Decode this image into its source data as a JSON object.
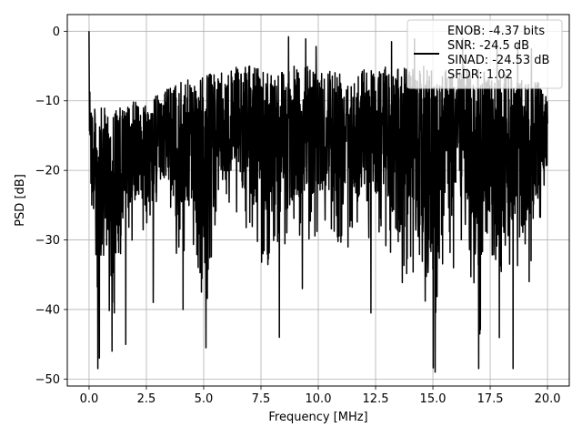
{
  "chart_data": {
    "type": "line",
    "xlabel": "Frequency [MHz]",
    "ylabel": "PSD [dB]",
    "xlim": [
      -0.95,
      20.95
    ],
    "ylim": [
      -51,
      2.4
    ],
    "xticks": [
      0,
      2.5,
      5,
      7.5,
      10,
      12.5,
      15,
      17.5,
      20
    ],
    "xtick_labels": [
      "0.0",
      "2.5",
      "5.0",
      "7.5",
      "10.0",
      "12.5",
      "15.0",
      "17.5",
      "20.0"
    ],
    "yticks": [
      0,
      -10,
      -20,
      -30,
      -40,
      -50
    ],
    "ytick_labels": [
      "0",
      "−10",
      "−20",
      "−30",
      "−40",
      "−50"
    ],
    "grid": true,
    "legend_position": "top-right",
    "legend_lines": [
      "ENOB: -4.37 bits",
      "SNR: -24.5 dB",
      "SINAD: -24.53 dB",
      "SFDR: 1.02"
    ],
    "series": [
      {
        "color": "#000000",
        "description": "dense noise spectrum, approximate envelope",
        "x": [
          0,
          0.05,
          0.1,
          0.2,
          0.3,
          0.4,
          0.5,
          0.7,
          1.0,
          1.5,
          2.0,
          2.5,
          3.0,
          3.5,
          4.0,
          4.5,
          5.0,
          5.5,
          6.0,
          6.5,
          7.0,
          7.5,
          8.0,
          8.5,
          9.0,
          9.5,
          10.0,
          10.5,
          11.0,
          11.5,
          12.0,
          12.5,
          13.0,
          13.5,
          14.0,
          14.5,
          15.0,
          15.5,
          16.0,
          16.5,
          17.0,
          17.5,
          18.0,
          18.5,
          19.0,
          19.5,
          20.0
        ],
        "y_upper": [
          0,
          -6,
          -10,
          -11,
          -11,
          -11,
          -11,
          -11,
          -11,
          -11,
          -10,
          -10,
          -9,
          -8,
          -7,
          -7,
          -6,
          -6,
          -6,
          -5,
          -5,
          -5,
          -5,
          -5,
          -5,
          -5,
          -5,
          -5,
          -5,
          -6,
          -5,
          -5,
          -5,
          -5,
          -5,
          -5,
          -5,
          -5,
          -5,
          -5,
          -5,
          -6,
          -6,
          -6,
          -7,
          -7,
          -9
        ],
        "y_lower": [
          -18,
          -20,
          -25,
          -33,
          -42,
          -48,
          -40,
          -36,
          -45,
          -32,
          -30,
          -28,
          -26,
          -27,
          -36,
          -30,
          -45,
          -30,
          -27,
          -28,
          -30,
          -34,
          -38,
          -34,
          -30,
          -31,
          -29,
          -30,
          -31,
          -29,
          -32,
          -30,
          -31,
          -40,
          -35,
          -36,
          -49,
          -34,
          -32,
          -31,
          -48,
          -30,
          -48,
          -34,
          -36,
          -31,
          -22
        ]
      }
    ],
    "spikes": [
      {
        "x": 0.0,
        "y": 0
      },
      {
        "x": 0.38,
        "y": -48.5
      },
      {
        "x": 0.45,
        "y": -47
      },
      {
        "x": 1.0,
        "y": -46
      },
      {
        "x": 1.1,
        "y": -40.5
      },
      {
        "x": 1.6,
        "y": -45
      },
      {
        "x": 2.8,
        "y": -39
      },
      {
        "x": 4.1,
        "y": -40
      },
      {
        "x": 5.1,
        "y": -45.5
      },
      {
        "x": 8.3,
        "y": -44
      },
      {
        "x": 9.3,
        "y": -37
      },
      {
        "x": 11.3,
        "y": -31
      },
      {
        "x": 12.3,
        "y": -40.5
      },
      {
        "x": 14.2,
        "y": -42
      },
      {
        "x": 15.1,
        "y": -49
      },
      {
        "x": 15.9,
        "y": -34
      },
      {
        "x": 17.0,
        "y": -48.5
      },
      {
        "x": 18.5,
        "y": -48.5
      },
      {
        "x": 19.2,
        "y": -36
      },
      {
        "x": 8.7,
        "y": -0.8
      },
      {
        "x": 9.45,
        "y": -1.1
      },
      {
        "x": 9.9,
        "y": -2.2
      },
      {
        "x": 13.2,
        "y": -1.5
      },
      {
        "x": 14.2,
        "y": -1.1
      },
      {
        "x": 16.3,
        "y": -1.0
      },
      {
        "x": 18.7,
        "y": -1.8
      },
      {
        "x": 17.8,
        "y": -1.5
      },
      {
        "x": 19.3,
        "y": -2.5
      }
    ]
  }
}
